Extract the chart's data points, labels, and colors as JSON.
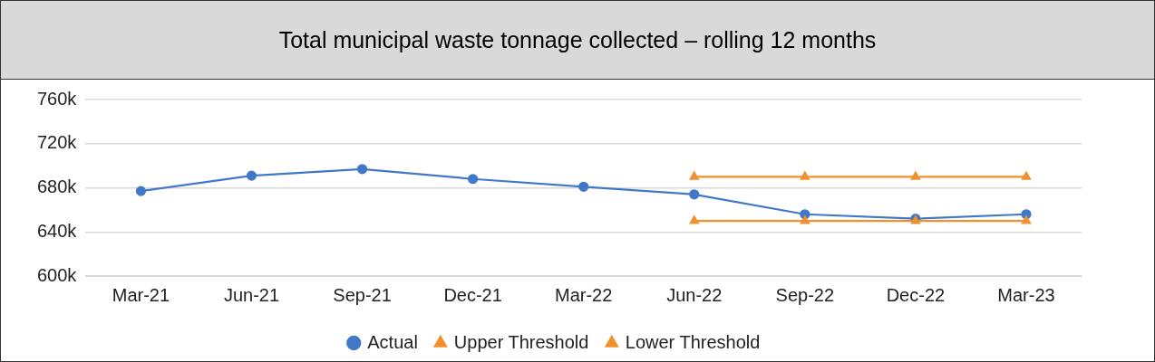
{
  "chart_data": {
    "type": "line",
    "title": "Total municipal waste tonnage collected – rolling 12 months",
    "categories": [
      "Mar-21",
      "Jun-21",
      "Sep-21",
      "Dec-21",
      "Mar-22",
      "Jun-22",
      "Sep-22",
      "Dec-22",
      "Mar-23"
    ],
    "series": [
      {
        "name": "Actual",
        "color": "#4178c8",
        "marker": "circle",
        "values": [
          677,
          691,
          697,
          688,
          681,
          674,
          656,
          652,
          656
        ]
      },
      {
        "name": "Upper Threshold",
        "color": "#f0912e",
        "marker": "triangle",
        "values": [
          null,
          null,
          null,
          null,
          null,
          690,
          690,
          690,
          690
        ]
      },
      {
        "name": "Lower Threshold",
        "color": "#f0912e",
        "marker": "triangle",
        "values": [
          null,
          null,
          null,
          null,
          null,
          650,
          650,
          650,
          650
        ]
      }
    ],
    "ylim": [
      600,
      760
    ],
    "yticks": [
      {
        "value": 600,
        "label": "600k"
      },
      {
        "value": 640,
        "label": "640k"
      },
      {
        "value": 680,
        "label": "680k"
      },
      {
        "value": 720,
        "label": "720k"
      },
      {
        "value": 760,
        "label": "760k"
      }
    ],
    "grid": "y",
    "legend": "bottom",
    "line_style": "solid"
  }
}
